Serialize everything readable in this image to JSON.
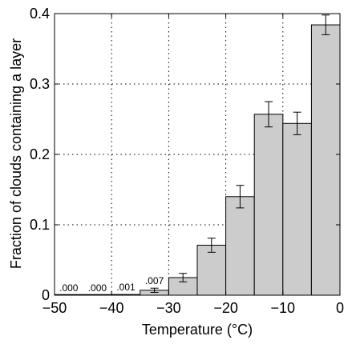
{
  "chart_data": {
    "type": "bar",
    "xlabel": "Temperature (°C)",
    "ylabel": "Fraction of clouds containing a layer",
    "xlim": [
      -50,
      0
    ],
    "ylim": [
      0,
      0.4
    ],
    "xticks": [
      -50,
      -40,
      -30,
      -20,
      -10,
      0
    ],
    "yticks": [
      0,
      0.1,
      0.2,
      0.3,
      0.4
    ],
    "xtick_labels": [
      "−50",
      "−40",
      "−30",
      "−20",
      "−10",
      "0"
    ],
    "ytick_labels": [
      "0",
      "0.1",
      "0.2",
      "0.3",
      "0.4"
    ],
    "grid": true,
    "bins": [
      {
        "x0": -50,
        "x1": -45,
        "value": 0.0,
        "err": 0.0,
        "label": ".000"
      },
      {
        "x0": -45,
        "x1": -40,
        "value": 0.0,
        "err": 0.0,
        "label": ".000"
      },
      {
        "x0": -40,
        "x1": -35,
        "value": 0.001,
        "err": 0.0,
        "label": ".001"
      },
      {
        "x0": -35,
        "x1": -30,
        "value": 0.007,
        "err": 0.003,
        "label": ".007"
      },
      {
        "x0": -30,
        "x1": -25,
        "value": 0.025,
        "err": 0.006,
        "label": ""
      },
      {
        "x0": -25,
        "x1": -20,
        "value": 0.071,
        "err": 0.01,
        "label": ""
      },
      {
        "x0": -20,
        "x1": -15,
        "value": 0.14,
        "err": 0.016,
        "label": ""
      },
      {
        "x0": -15,
        "x1": -10,
        "value": 0.257,
        "err": 0.018,
        "label": ""
      },
      {
        "x0": -10,
        "x1": -5,
        "value": 0.244,
        "err": 0.016,
        "label": ""
      },
      {
        "x0": -5,
        "x1": 0,
        "value": 0.384,
        "err": 0.014,
        "label": ""
      }
    ]
  }
}
